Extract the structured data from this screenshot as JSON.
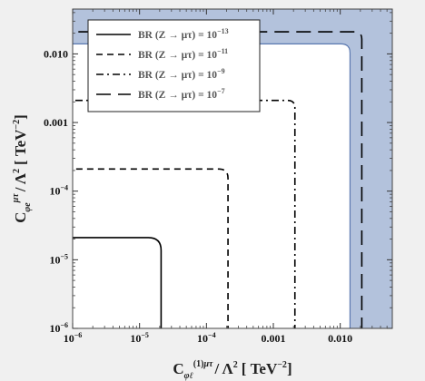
{
  "chart_data": {
    "type": "line",
    "title": "",
    "x_scale": "log",
    "y_scale": "log",
    "xlim": [
      1e-06,
      0.06
    ],
    "ylim": [
      1e-06,
      0.045
    ],
    "xlabel": {
      "prefix": "C",
      "sub": "φℓ",
      "sup_index": "(1)",
      "sup_flavour": "μτ",
      "rest": "/ Λ",
      "power": "2",
      "unit_open": "[ ",
      "unit": "TeV",
      "unit_power": "−2",
      "unit_close": "]"
    },
    "ylabel": {
      "prefix": "C",
      "sub": "φe",
      "sup_flavour": "μτ",
      "rest": "/ Λ",
      "power": "2",
      "unit_open": "[ ",
      "unit": "TeV",
      "unit_power": "−2",
      "unit_close": "]"
    },
    "x_ticks": [
      {
        "value": 1e-06,
        "label": "10",
        "exp": "−6"
      },
      {
        "value": 1e-05,
        "label": "10",
        "exp": "−5"
      },
      {
        "value": 0.0001,
        "label": "10",
        "exp": "−4"
      },
      {
        "value": 0.001,
        "label": "0.001",
        "exp": ""
      },
      {
        "value": 0.01,
        "label": "0.010",
        "exp": ""
      }
    ],
    "y_ticks": [
      {
        "value": 1e-06,
        "label": "10",
        "exp": "−6"
      },
      {
        "value": 1e-05,
        "label": "10",
        "exp": "−5"
      },
      {
        "value": 0.0001,
        "label": "10",
        "exp": "−4"
      },
      {
        "value": 0.001,
        "label": "0.001",
        "exp": ""
      },
      {
        "value": 0.01,
        "label": "0.010",
        "exp": ""
      }
    ],
    "legend_position": "top-left",
    "series": [
      {
        "name": "BR (Z → μτ) = 10",
        "exp": "−13",
        "dash": "solid",
        "corner": 2.1e-05,
        "color": "#000000"
      },
      {
        "name": "BR (Z → μτ) = 10",
        "exp": "−11",
        "dash": "dashed",
        "corner": 0.00021,
        "color": "#000000"
      },
      {
        "name": "BR (Z → μτ) = 10",
        "exp": "−9",
        "dash": "dashdot",
        "corner": 0.0021,
        "color": "#000000"
      },
      {
        "name": "BR (Z → μτ) = 10",
        "exp": "−7",
        "dash": "longdash",
        "corner": 0.021,
        "color": "#000000"
      }
    ],
    "excluded_region": {
      "corner": 0.014,
      "fill": "#b3c2dc",
      "edge": "#5a78b0"
    }
  }
}
